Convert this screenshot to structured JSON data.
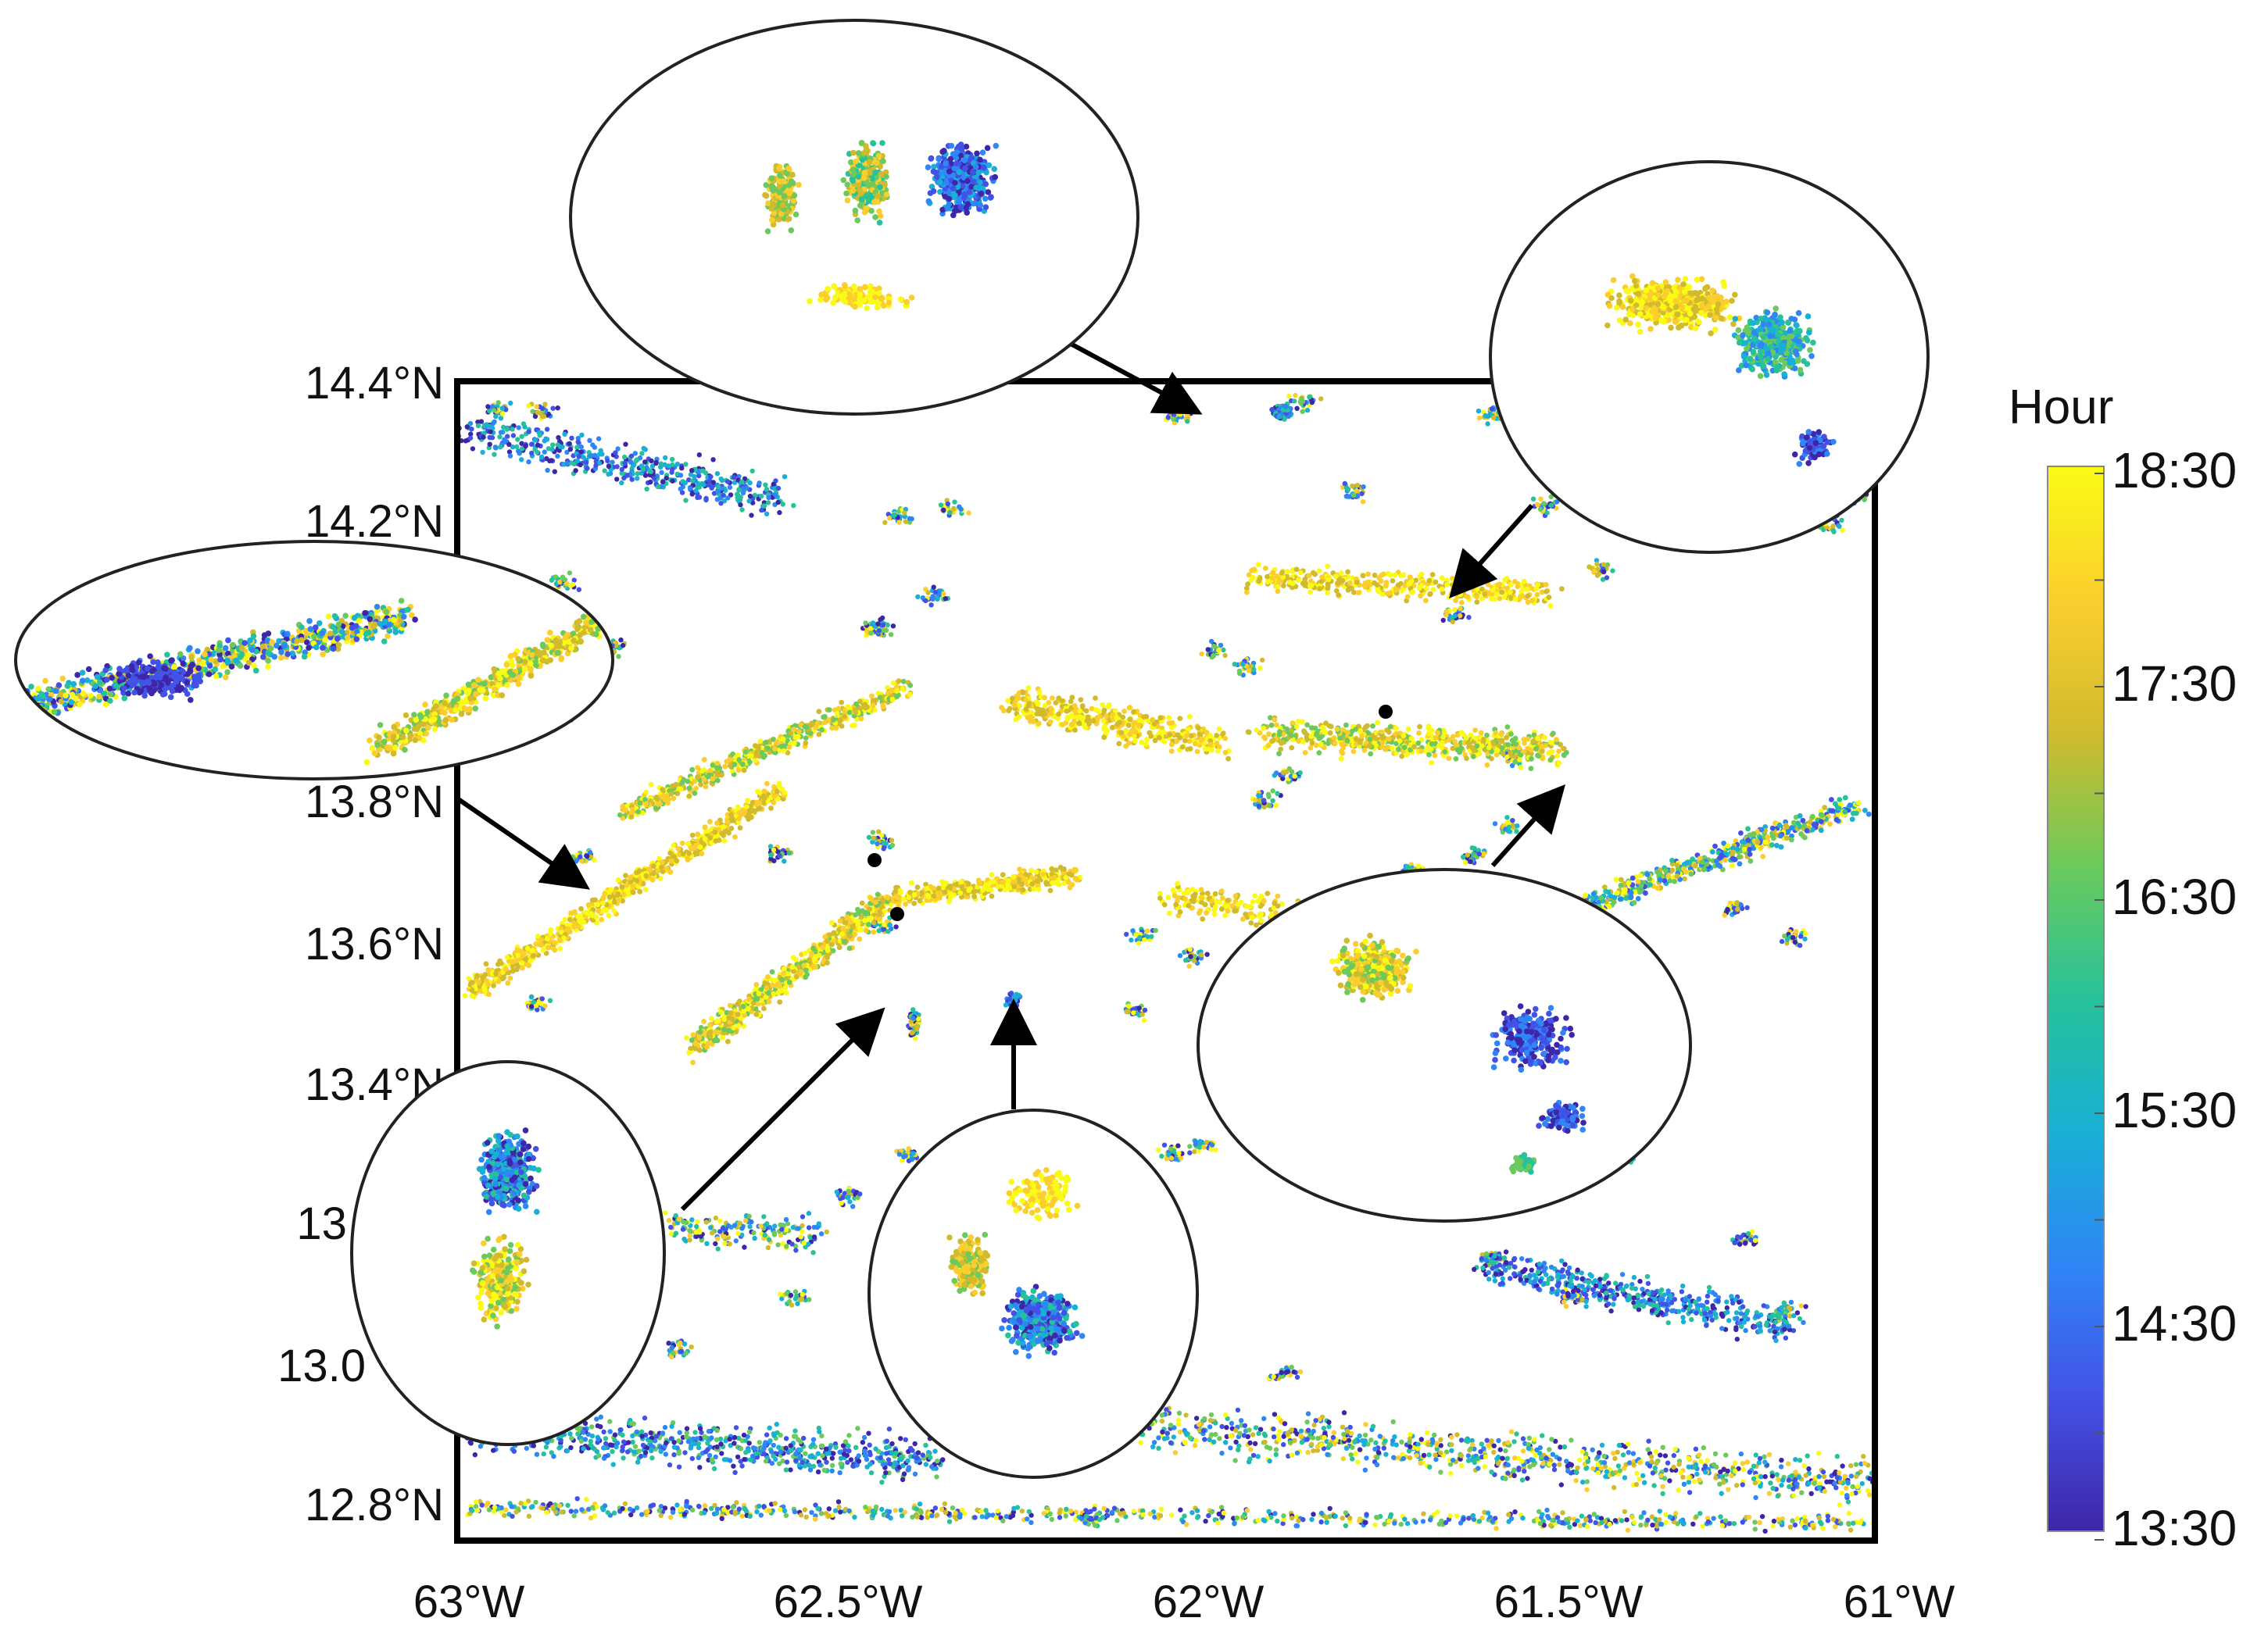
{
  "colorbar": {
    "title": "Hour",
    "ticks": [
      "18:30",
      "17:30",
      "16:30",
      "15:30",
      "14:30",
      "13:30"
    ],
    "colormap": [
      "#3e26a8",
      "#4352e6",
      "#2f86f6",
      "#18b0d5",
      "#27c29a",
      "#6bca5b",
      "#d1bb2d",
      "#fbce2e",
      "#f9fb15"
    ]
  },
  "map": {
    "lat_ticks": [
      "14.4°N",
      "14.2°N",
      "13.8°N",
      "13.6°N",
      "13.4°N",
      "13.",
      "13.0",
      "12.8°N"
    ],
    "lon_ticks": [
      "63°W",
      "62.5°W",
      "62°W",
      "61.5°W",
      "61°W"
    ],
    "lon_range": [
      -63.0,
      -61.0
    ],
    "lat_range": [
      12.75,
      14.42
    ]
  },
  "insets": [
    "zoom-top",
    "zoom-top-right",
    "zoom-left",
    "zoom-bottom-left",
    "zoom-bottom-center",
    "zoom-right"
  ]
}
